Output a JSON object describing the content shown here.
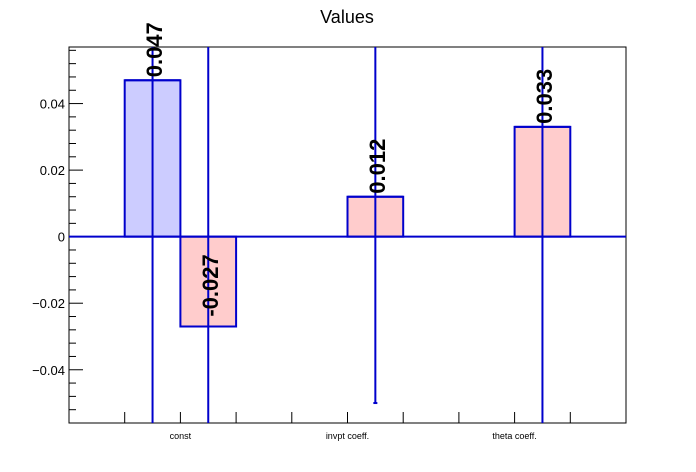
{
  "chart_data": {
    "type": "bar",
    "title": "Values",
    "xlabel": "",
    "ylabel": "",
    "ylim": [
      -0.056,
      0.057
    ],
    "yticks": [
      -0.04,
      -0.02,
      0,
      0.02,
      0.04
    ],
    "ytick_labels": [
      "−0.04",
      "−0.02",
      "0",
      "0.02",
      "0.04"
    ],
    "categories": [
      "const",
      "invpt coeff.",
      "theta coeff."
    ],
    "grid": false,
    "legend": "none",
    "bars": [
      {
        "category": "const",
        "slot": 1,
        "value": 0.047,
        "label": "0.047",
        "fill": "#ccccff",
        "error_low": -0.056,
        "error_high": 0.057
      },
      {
        "category": "const",
        "slot": 2,
        "value": -0.027,
        "label": "-0.027",
        "fill": "#ffcccc",
        "error_low": -0.056,
        "error_high": 0.057
      },
      {
        "category": "invpt coeff.",
        "slot": 5,
        "value": 0.012,
        "label": "0.012",
        "fill": "#ffcccc",
        "error_low": -0.05,
        "error_high": 0.057
      },
      {
        "category": "theta coeff.",
        "slot": 8,
        "value": 0.033,
        "label": "0.033",
        "fill": "#ffcccc",
        "error_low": -0.056,
        "error_high": 0.057
      }
    ],
    "colors": {
      "stroke": "#0000cc",
      "zero_line": "#0000cc",
      "axis": "#000000"
    }
  }
}
